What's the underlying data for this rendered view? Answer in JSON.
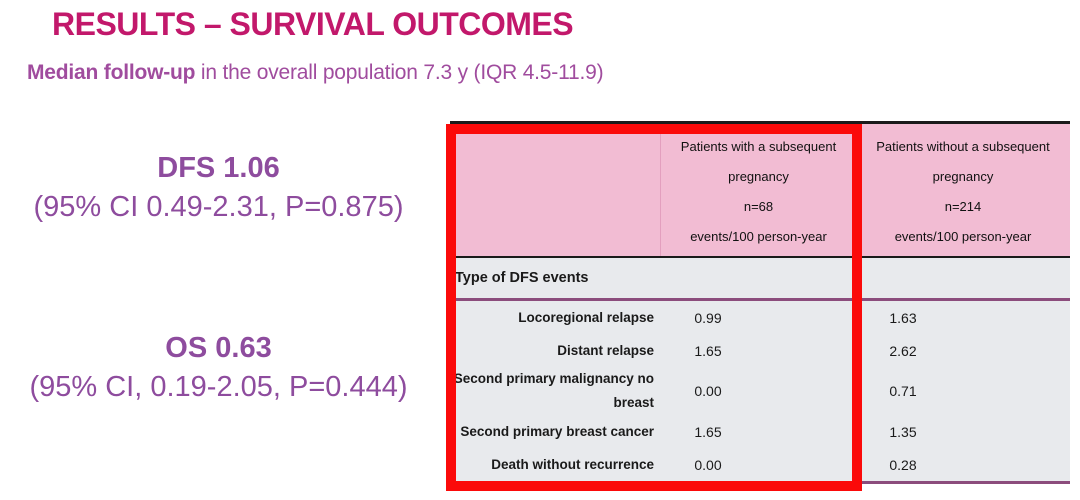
{
  "slide": {
    "title": "RESULTS – SURVIVAL OUTCOMES",
    "subtitle_bold": "Median follow-up",
    "subtitle_rest": " in the overall population 7.3 y (IQR 4.5-11.9)",
    "stats": [
      {
        "headline": "DFS 1.06",
        "detail": "(95% CI 0.49-2.31, P=0.875)"
      },
      {
        "headline": "OS 0.63",
        "detail": "(95% CI, 0.19-2.05, P=0.444)"
      }
    ]
  },
  "table": {
    "col_headers": [
      {
        "lines": [
          "Patients with a subsequent",
          "pregnancy",
          "n=68",
          "events/100 person-year"
        ]
      },
      {
        "lines": [
          "Patients without a subsequent",
          "pregnancy",
          "n=214",
          "events/100 person-year"
        ]
      }
    ],
    "section_header": "Type of DFS events",
    "rows": [
      {
        "label": "Locoregional relapse",
        "with_pregnancy": "0.99",
        "without_pregnancy": "1.63"
      },
      {
        "label": "Distant relapse",
        "with_pregnancy": "1.65",
        "without_pregnancy": "2.62"
      },
      {
        "label": "Second primary malignancy no\nbreast",
        "with_pregnancy": "0.00",
        "without_pregnancy": "0.71"
      },
      {
        "label": "Second primary breast cancer",
        "with_pregnancy": "1.65",
        "without_pregnancy": "1.35"
      },
      {
        "label": "Death without recurrence",
        "with_pregnancy": "0.00",
        "without_pregnancy": "0.28"
      }
    ]
  },
  "colors": {
    "title_pink": "#C2186B",
    "subtitle_purple": "#A04C9E",
    "stat_purple": "#8E4C9E",
    "header_pink": "#F2BCD3",
    "body_gray": "#E8EAED",
    "line_purple": "#8B4C7C",
    "line_black": "#1A1A1A",
    "border_red": "#FB0A0A"
  }
}
